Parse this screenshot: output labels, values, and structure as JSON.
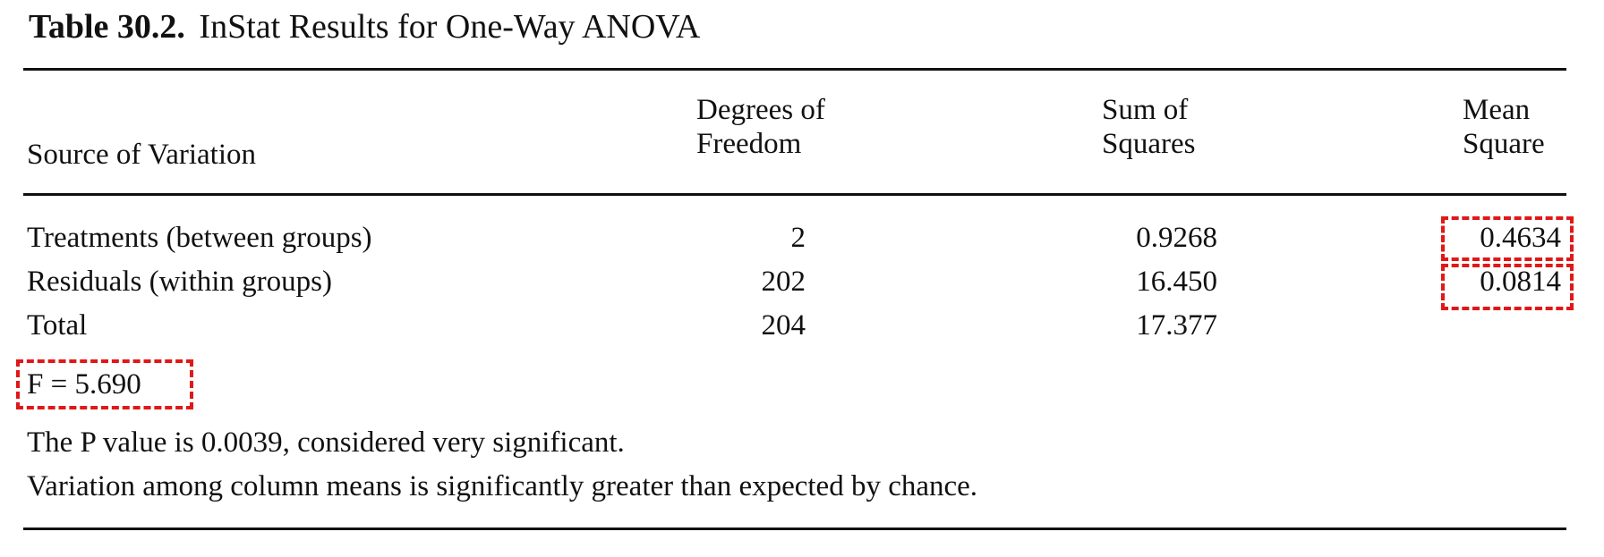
{
  "title": {
    "number": "Table 30.2.",
    "text": "InStat Results for One-Way ANOVA"
  },
  "headers": {
    "source": "Source of Variation",
    "df_line1": "Degrees of",
    "df_line2": "Freedom",
    "ss_line1": "Sum of",
    "ss_line2": "Squares",
    "ms_line1": "Mean",
    "ms_line2": "Square"
  },
  "rows": [
    {
      "source": "Treatments (between groups)",
      "df": "2",
      "ss": "0.9268",
      "ms": "0.4634"
    },
    {
      "source": "Residuals (within groups)",
      "df": "202",
      "ss": "16.450",
      "ms": "0.0814"
    },
    {
      "source": "Total",
      "df": "204",
      "ss": "17.377",
      "ms": ""
    }
  ],
  "f_statistic": "F = 5.690",
  "notes": [
    "The P value is 0.0039, considered very significant.",
    "Variation among column means is significantly greater than expected by chance."
  ],
  "highlight_color": "#e01818"
}
